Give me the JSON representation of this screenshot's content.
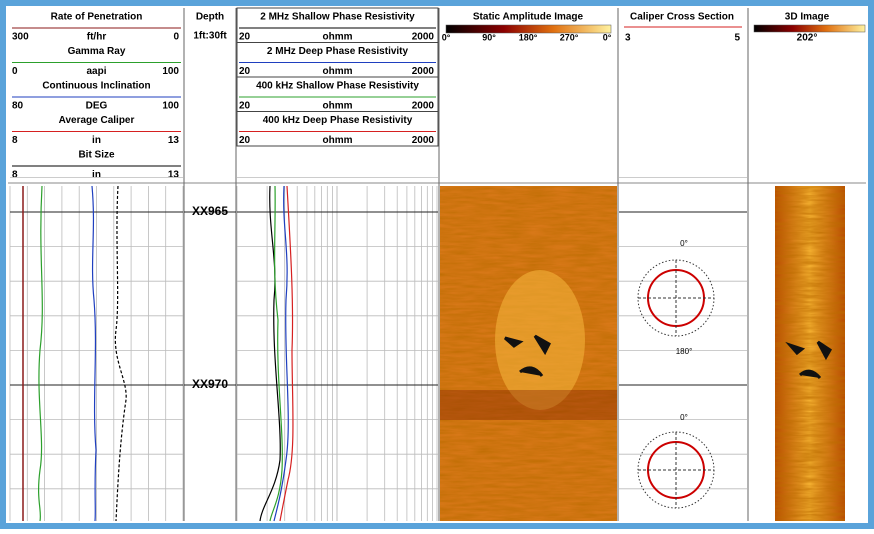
{
  "track1": [
    {
      "title": "Rate of Penetration",
      "min": "300",
      "unit": "ft/hr",
      "max": "0",
      "color": "#8b1a1a"
    },
    {
      "title": "Gamma Ray",
      "min": "0",
      "unit": "aapi",
      "max": "100",
      "color": "#2ca02c"
    },
    {
      "title": "Continuous Inclination",
      "min": "80",
      "unit": "DEG",
      "max": "100",
      "color": "#1f3fbf"
    },
    {
      "title": "Average Caliper",
      "min": "8",
      "unit": "in",
      "max": "13",
      "color": "#d62020"
    },
    {
      "title": "Bit Size",
      "min": "8",
      "unit": "in",
      "max": "13",
      "color": "#000000"
    }
  ],
  "depth": {
    "title": "Depth",
    "scale": "1ft:30ft",
    "labels": [
      "XX965",
      "XX970"
    ]
  },
  "resistivity": [
    {
      "title": "2 MHz Shallow Phase Resistivity",
      "min": "20",
      "unit": "ohmm",
      "max": "2000",
      "color": "#000000"
    },
    {
      "title": "2 MHz Deep Phase Resistivity",
      "min": "20",
      "unit": "ohmm",
      "max": "2000",
      "color": "#1f3fbf"
    },
    {
      "title": "400 kHz Shallow Phase Resistivity",
      "min": "20",
      "unit": "ohmm",
      "max": "2000",
      "color": "#2ca02c"
    },
    {
      "title": "400 kHz Deep Phase Resistivity",
      "min": "20",
      "unit": "ohmm",
      "max": "2000",
      "color": "#d62020"
    }
  ],
  "static_image": {
    "title": "Static Amplitude Image",
    "ticks": [
      "0°",
      "90°",
      "180°",
      "270°",
      "0°"
    ]
  },
  "caliper_section": {
    "title": "Caliper Cross Section",
    "min": "3",
    "max": "5",
    "labels": [
      "0°",
      "180°",
      "0°"
    ]
  },
  "image_3d": {
    "title": "3D Image",
    "label": "202°"
  }
}
